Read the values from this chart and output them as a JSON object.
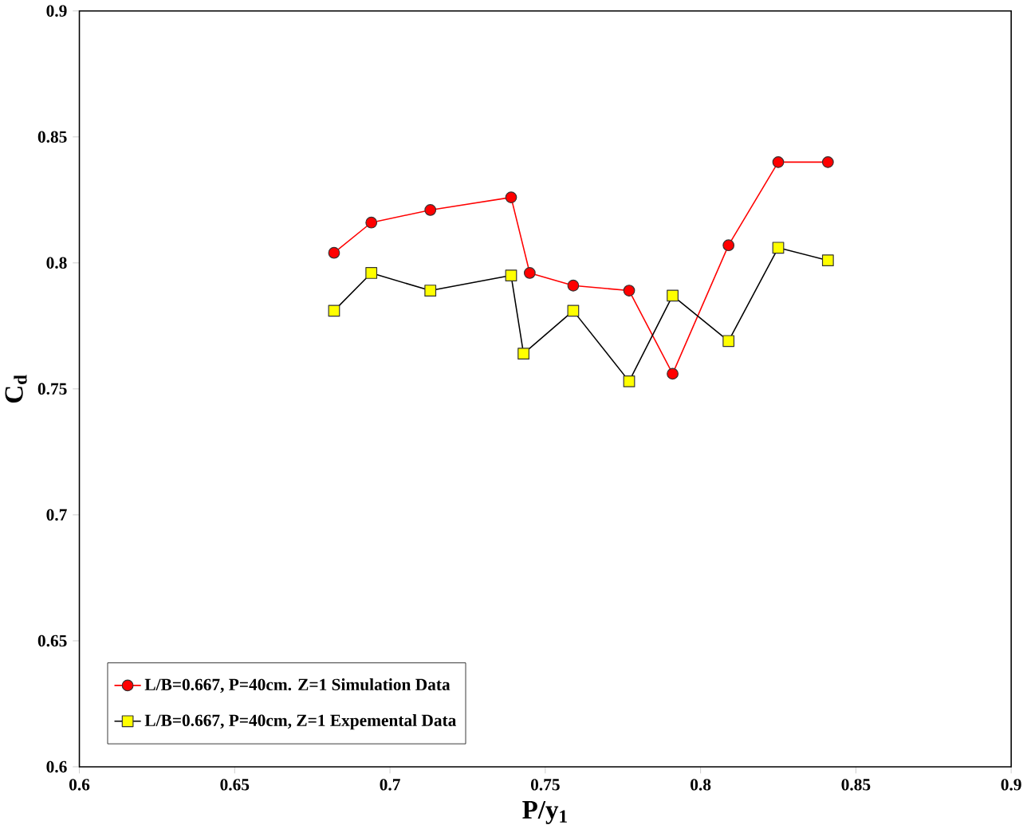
{
  "chart_data": {
    "type": "line",
    "xlabel": "P/y$_{1}$",
    "ylabel": "C$_{d}$",
    "xlim": [
      0.6,
      0.9
    ],
    "xticks": [
      0.6,
      0.65,
      0.7,
      0.75,
      0.8,
      0.85,
      0.9
    ],
    "ylim": [
      0.6,
      0.9
    ],
    "yticks": [
      0.6,
      0.65,
      0.7,
      0.75,
      0.8,
      0.85,
      0.9
    ],
    "grid": false,
    "legend": "bottom left",
    "series": [
      {
        "name": "L/B=0.667, P=40cm. Z=1 Simulation Data",
        "color": "#ff0000",
        "marker": "circle",
        "x": [
          0.682,
          0.694,
          0.713,
          0.739,
          0.745,
          0.759,
          0.777,
          0.791,
          0.809,
          0.825,
          0.841
        ],
        "values": [
          0.804,
          0.816,
          0.821,
          0.826,
          0.796,
          0.791,
          0.789,
          0.756,
          0.807,
          0.84,
          0.84
        ]
      },
      {
        "name": "L/B=0.667, P=40cm, Z=1 Expemental Data",
        "color": "#ffff00",
        "marker": "square",
        "x": [
          0.682,
          0.694,
          0.713,
          0.739,
          0.743,
          0.759,
          0.777,
          0.791,
          0.809,
          0.825,
          0.841
        ],
        "values": [
          0.781,
          0.796,
          0.789,
          0.795,
          0.764,
          0.781,
          0.753,
          0.787,
          0.769,
          0.806,
          0.801
        ]
      }
    ]
  }
}
